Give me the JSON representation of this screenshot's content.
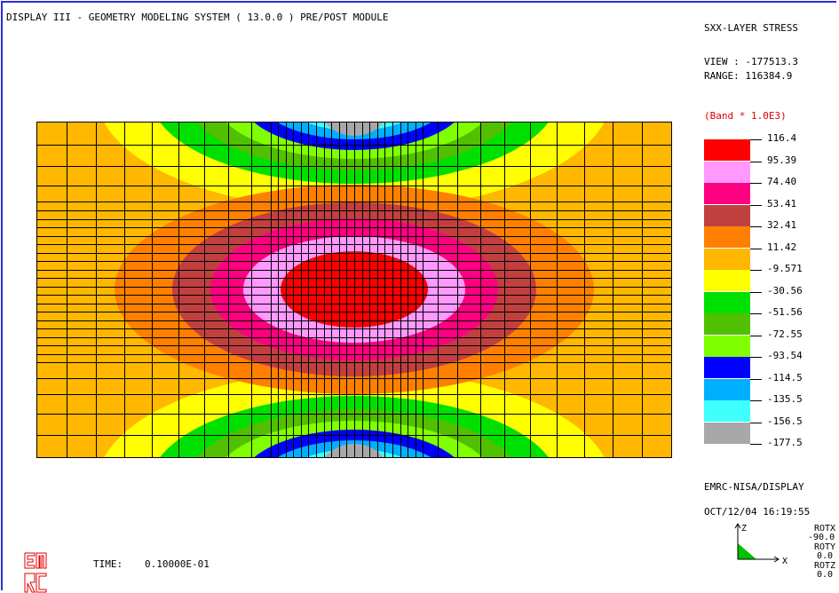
{
  "header": "DISPLAY III - GEOMETRY MODELING SYSTEM ( 13.0.0 )  PRE/POST MODULE",
  "result_title": "SXX-LAYER STRESS",
  "view_label": "VIEW : -177513.3",
  "range_label": "RANGE: 116384.9",
  "band_scale": "(Band * 1.0E3)",
  "legend": {
    "values": [
      "116.4",
      "95.39",
      "74.40",
      "53.41",
      "32.41",
      "11.42",
      "-9.571",
      "-30.56",
      "-51.56",
      "-72.55",
      "-93.54",
      "-114.5",
      "-135.5",
      "-156.5",
      "-177.5"
    ],
    "colors": [
      "#ff0000",
      "#ff99ff",
      "#ff0080",
      "#c04040",
      "#ff8000",
      "#ffb700",
      "#ffff00",
      "#00e000",
      "#50c000",
      "#80ff00",
      "#0000ff",
      "#00b0ff",
      "#40ffff",
      "#a8a8a8"
    ]
  },
  "software": "EMRC-NISA/DISPLAY",
  "datetime": "OCT/12/04 16:19:55",
  "time_label": "TIME:",
  "time_value": "0.10000E-01",
  "logo_text": "EMRC",
  "triad": {
    "z_label": "Z",
    "x_label": "X",
    "rotx_label": "ROTX",
    "rotx_value": "-90.0",
    "roty_label": "ROTY",
    "roty_value": "0.0",
    "rotz_label": "ROTZ",
    "rotz_value": "0.0"
  },
  "contour_colors": {
    "outer": "#ffb700",
    "yellow": "#ffff00",
    "green_light": "#00e000",
    "green_mid": "#50c000",
    "lime": "#80ff00",
    "blue": "#0000ff",
    "sky": "#00b0ff",
    "cyan": "#40ffff",
    "gray": "#a8a8a8",
    "orange": "#ff8000",
    "brown": "#c04040",
    "magenta": "#ff0080",
    "pink": "#ff99ff",
    "red": "#ff0000"
  }
}
